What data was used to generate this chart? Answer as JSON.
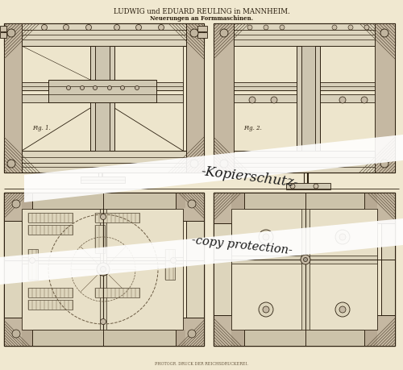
{
  "bg_color": "#f0e8d0",
  "paper_color": "#f0e8d0",
  "title_line1": "LUDWIG und EDUARD REULING in MANNHEIM.",
  "title_line2": "Neuerungen an Formmaschinen.",
  "footer_text": "PHOTOGR. DRUCK DER REICHSDRUCKEREI.",
  "watermark1": "-Kopierschutz-",
  "watermark2": "-copy protection-",
  "line_color": "#4a3c2a",
  "dark_line": "#2a1e0e",
  "mid_line": "#6a5a42",
  "fig_color": "#ede5cc",
  "hatch_color": "#5a4a35",
  "shadow_color": "#c8bcaa"
}
